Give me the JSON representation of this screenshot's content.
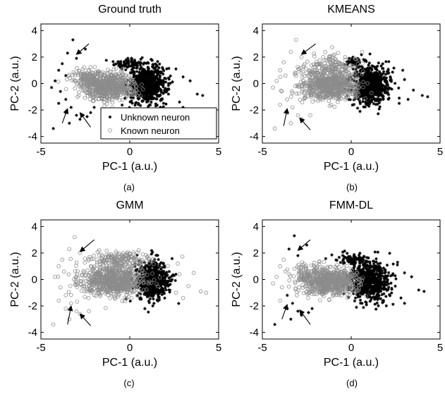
{
  "figure": {
    "colors": {
      "unknown": "#000000",
      "known": "#8c8c8c",
      "axis": "#000000",
      "background": "#ffffff"
    },
    "chart_data": [
      {
        "type": "scatter",
        "title": "Ground truth",
        "xlabel": "PC-1 (a.u.)",
        "ylabel": "PC-2 (a.u.)",
        "xlim": [
          -5,
          5
        ],
        "ylim": [
          -4.5,
          4.5
        ],
        "xticks": [
          "-5",
          "0",
          "5"
        ],
        "yticks": [
          "-4",
          "-2",
          "0",
          "2",
          "4"
        ],
        "caption": "(a)",
        "legend": {
          "placement": "bottom-right",
          "entries": [
            "Unknown neuron",
            "Known neuron"
          ]
        },
        "series": [
          {
            "name": "Unknown neuron",
            "marker": "star",
            "color": "#000000",
            "clusters": [
              {
                "center": [
                  1.0,
                  -0.1
                ],
                "spread": [
                  0.55,
                  0.75
                ],
                "n": 650
              },
              {
                "center": [
                  0.0,
                  1.55
                ],
                "spread": [
                  0.45,
                  0.22
                ],
                "n": 70
              }
            ],
            "outliers": [
              [
                -3.2,
                3.3
              ],
              [
                -3.5,
                2.3
              ],
              [
                -3.0,
                1.9
              ],
              [
                -2.5,
                2.6
              ],
              [
                -3.8,
                1.5
              ],
              [
                -4.0,
                1.0
              ],
              [
                -3.6,
                0.6
              ],
              [
                -4.2,
                0.2
              ],
              [
                -3.9,
                -0.6
              ],
              [
                -3.6,
                -1.2
              ],
              [
                -4.0,
                -1.5
              ],
              [
                -3.3,
                -1.8
              ],
              [
                -3.6,
                -2.2
              ],
              [
                -2.8,
                -2.7
              ],
              [
                -3.4,
                -3.0
              ],
              [
                -4.3,
                -3.4
              ],
              [
                -2.4,
                -2.5
              ],
              [
                -2.2,
                -2.2
              ],
              [
                -3.0,
                -2.4
              ],
              [
                -2.0,
                -1.8
              ],
              [
                -4.4,
                -0.3
              ],
              [
                3.0,
                0.5
              ],
              [
                3.4,
                0.2
              ],
              [
                3.8,
                -0.8
              ],
              [
                4.1,
                -0.9
              ],
              [
                2.8,
                -1.4
              ],
              [
                3.0,
                -1.8
              ],
              [
                2.6,
                1.1
              ]
            ]
          },
          {
            "name": "Known neuron",
            "marker": "circle",
            "color": "#8c8c8c",
            "clusters": [
              {
                "center": [
                  -1.2,
                  -0.2
                ],
                "spread": [
                  0.75,
                  0.5
                ],
                "n": 650
              },
              {
                "center": [
                  -2.3,
                  0.55
                ],
                "spread": [
                  0.55,
                  0.35
                ],
                "n": 90
              }
            ],
            "outliers": []
          }
        ],
        "annotations": [
          {
            "type": "arrow",
            "from": [
              -2.3,
              3.0
            ],
            "to": [
              -3.0,
              2.2
            ]
          },
          {
            "type": "arrow",
            "from": [
              -3.8,
              -3.0
            ],
            "to": [
              -3.5,
              -1.9
            ]
          },
          {
            "type": "arrow",
            "from": [
              -2.2,
              -3.3
            ],
            "to": [
              -2.8,
              -2.2
            ]
          }
        ]
      },
      {
        "type": "scatter",
        "title": "KMEANS",
        "xlabel": "PC-1 (a.u.)",
        "ylabel": "PC-2 (a.u.)",
        "xlim": [
          -5,
          5
        ],
        "ylim": [
          -4.5,
          4.5
        ],
        "xticks": [
          "-5",
          "0",
          "5"
        ],
        "yticks": [
          "-4",
          "-2",
          "0",
          "2",
          "4"
        ],
        "caption": "(b)",
        "series": [
          {
            "name": "",
            "marker": "star",
            "color": "#000000",
            "clusters": [
              {
                "center": [
                  1.1,
                  -0.1
                ],
                "spread": [
                  0.5,
                  0.72
                ],
                "n": 700
              },
              {
                "center": [
                  0.2,
                  1.6
                ],
                "spread": [
                  0.25,
                  0.18
                ],
                "n": 40
              }
            ],
            "outliers": [
              [
                3.0,
                0.3
              ],
              [
                3.5,
                -0.5
              ],
              [
                4.0,
                -0.9
              ],
              [
                4.3,
                -1.0
              ],
              [
                2.7,
                -1.5
              ],
              [
                2.9,
                1.0
              ],
              [
                3.2,
                -1.2
              ]
            ]
          },
          {
            "name": "",
            "marker": "circle",
            "color": "#8c8c8c",
            "clusters": [
              {
                "center": [
                  -1.2,
                  -0.2
                ],
                "spread": [
                  0.8,
                  0.55
                ],
                "n": 650
              },
              {
                "center": [
                  -1.3,
                  1.2
                ],
                "spread": [
                  0.9,
                  0.45
                ],
                "n": 160
              }
            ],
            "outliers": [
              [
                -3.1,
                3.3
              ],
              [
                -3.4,
                2.4
              ],
              [
                -2.8,
                2.0
              ],
              [
                -3.8,
                1.6
              ],
              [
                -4.0,
                1.0
              ],
              [
                -3.7,
                0.6
              ],
              [
                -4.2,
                0.2
              ],
              [
                -3.9,
                -0.6
              ],
              [
                -3.6,
                -1.2
              ],
              [
                -4.0,
                -1.6
              ],
              [
                -3.3,
                -1.8
              ],
              [
                -3.6,
                -2.2
              ],
              [
                -2.8,
                -2.7
              ],
              [
                -3.4,
                -3.0
              ],
              [
                -4.3,
                -3.4
              ],
              [
                -2.3,
                -2.4
              ],
              [
                -3.0,
                -2.4
              ],
              [
                -4.4,
                -0.3
              ]
            ]
          }
        ],
        "annotations": [
          {
            "type": "arrow",
            "from": [
              -2.0,
              3.0
            ],
            "to": [
              -2.8,
              2.2
            ]
          },
          {
            "type": "arrow",
            "from": [
              -3.8,
              -3.2
            ],
            "to": [
              -3.6,
              -1.9
            ]
          },
          {
            "type": "arrow",
            "from": [
              -2.3,
              -3.5
            ],
            "to": [
              -2.9,
              -2.6
            ]
          }
        ]
      },
      {
        "type": "scatter",
        "title": "GMM",
        "xlabel": "PC-1 (a.u.)",
        "ylabel": "PC-2 (a.u.)",
        "xlim": [
          -5,
          5
        ],
        "ylim": [
          -4.5,
          4.5
        ],
        "xticks": [
          "-5",
          "0",
          "5"
        ],
        "yticks": [
          "-4",
          "-2",
          "0",
          "2",
          "4"
        ],
        "caption": "(c)",
        "series": [
          {
            "name": "",
            "marker": "star",
            "color": "#000000",
            "clusters": [
              {
                "center": [
                  1.3,
                  -0.1
                ],
                "spread": [
                  0.45,
                  0.72
                ],
                "n": 650
              }
            ],
            "outliers": []
          },
          {
            "name": "",
            "marker": "circle",
            "color": "#8c8c8c",
            "clusters": [
              {
                "center": [
                  -1.0,
                  -0.1
                ],
                "spread": [
                  0.9,
                  0.55
                ],
                "n": 750
              },
              {
                "center": [
                  -0.6,
                  1.4
                ],
                "spread": [
                  1.0,
                  0.35
                ],
                "n": 180
              }
            ],
            "outliers": [
              [
                -3.1,
                3.2
              ],
              [
                -3.4,
                2.3
              ],
              [
                -2.8,
                2.0
              ],
              [
                -3.8,
                1.5
              ],
              [
                -4.0,
                1.0
              ],
              [
                -3.7,
                0.6
              ],
              [
                -4.2,
                0.2
              ],
              [
                -3.9,
                -0.6
              ],
              [
                -3.6,
                -1.2
              ],
              [
                -4.0,
                -1.6
              ],
              [
                -3.3,
                -1.8
              ],
              [
                -3.6,
                -2.2
              ],
              [
                -2.8,
                -2.6
              ],
              [
                -3.4,
                -3.0
              ],
              [
                -4.3,
                -3.4
              ],
              [
                -2.3,
                -2.4
              ],
              [
                -3.0,
                -2.4
              ],
              [
                2.8,
                0.4
              ],
              [
                3.0,
                -1.4
              ],
              [
                3.6,
                0.5
              ],
              [
                4.0,
                -0.9
              ],
              [
                4.3,
                -1.0
              ],
              [
                2.7,
                1.2
              ],
              [
                3.3,
                -0.5
              ],
              [
                2.6,
                -1.0
              ]
            ]
          }
        ],
        "annotations": [
          {
            "type": "arrow",
            "from": [
              -2.0,
              3.0
            ],
            "to": [
              -2.8,
              2.1
            ]
          },
          {
            "type": "arrow",
            "from": [
              -3.5,
              -3.4
            ],
            "to": [
              -3.3,
              -2.0
            ]
          },
          {
            "type": "arrow",
            "from": [
              -2.2,
              -3.5
            ],
            "to": [
              -2.8,
              -2.6
            ]
          }
        ]
      },
      {
        "type": "scatter",
        "title": "FMM-DL",
        "xlabel": "PC-1 (a.u.)",
        "ylabel": "PC-2 (a.u.)",
        "xlim": [
          -5,
          5
        ],
        "ylim": [
          -4.5,
          4.5
        ],
        "xticks": [
          "-5",
          "0",
          "5"
        ],
        "yticks": [
          "-4",
          "-2",
          "0",
          "2",
          "4"
        ],
        "caption": "(d)",
        "series": [
          {
            "name": "",
            "marker": "star",
            "color": "#000000",
            "clusters": [
              {
                "center": [
                  1.0,
                  -0.1
                ],
                "spread": [
                  0.55,
                  0.75
                ],
                "n": 650
              },
              {
                "center": [
                  0.0,
                  1.6
                ],
                "spread": [
                  0.45,
                  0.22
                ],
                "n": 70
              }
            ],
            "outliers": [
              [
                -3.2,
                3.3
              ],
              [
                -3.5,
                2.3
              ],
              [
                -2.5,
                2.6
              ],
              [
                -3.0,
                1.8
              ],
              [
                -3.6,
                -1.2
              ],
              [
                -3.3,
                -1.8
              ],
              [
                -3.6,
                -2.2
              ],
              [
                -2.8,
                -2.7
              ],
              [
                -3.4,
                -3.0
              ],
              [
                -4.3,
                -3.4
              ],
              [
                -2.4,
                -2.5
              ],
              [
                -2.2,
                -2.2
              ],
              [
                -3.0,
                -2.4
              ],
              [
                3.0,
                0.5
              ],
              [
                3.4,
                0.2
              ],
              [
                3.8,
                -0.8
              ],
              [
                4.1,
                -0.9
              ],
              [
                2.8,
                -1.4
              ],
              [
                3.0,
                -1.8
              ],
              [
                2.6,
                1.1
              ]
            ]
          },
          {
            "name": "",
            "marker": "circle",
            "color": "#8c8c8c",
            "clusters": [
              {
                "center": [
                  -1.2,
                  -0.2
                ],
                "spread": [
                  0.75,
                  0.5
                ],
                "n": 650
              },
              {
                "center": [
                  -2.3,
                  0.55
                ],
                "spread": [
                  0.55,
                  0.35
                ],
                "n": 90
              }
            ],
            "outliers": [
              [
                -3.8,
                1.5
              ],
              [
                -4.0,
                1.0
              ],
              [
                -3.7,
                0.6
              ],
              [
                -4.2,
                0.2
              ],
              [
                -3.9,
                -0.6
              ],
              [
                -4.0,
                -1.6
              ],
              [
                -4.4,
                -0.3
              ]
            ]
          }
        ],
        "annotations": [
          {
            "type": "arrow",
            "from": [
              -2.3,
              3.0
            ],
            "to": [
              -3.0,
              2.2
            ]
          },
          {
            "type": "arrow",
            "from": [
              -3.9,
              -3.0
            ],
            "to": [
              -3.6,
              -1.9
            ]
          },
          {
            "type": "arrow",
            "from": [
              -2.3,
              -3.4
            ],
            "to": [
              -2.9,
              -2.3
            ]
          }
        ]
      }
    ]
  }
}
